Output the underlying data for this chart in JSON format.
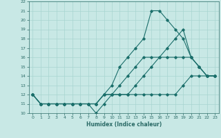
{
  "xlabel": "Humidex (Indice chaleur)",
  "ylabel": "",
  "background_color": "#c8e8e5",
  "grid_color": "#a8d5d0",
  "line_color": "#1a6e6a",
  "xlim": [
    -0.5,
    23.5
  ],
  "ylim": [
    10,
    22
  ],
  "xticks": [
    0,
    1,
    2,
    3,
    4,
    5,
    6,
    7,
    8,
    9,
    10,
    11,
    12,
    13,
    14,
    15,
    16,
    17,
    18,
    19,
    20,
    21,
    22,
    23
  ],
  "yticks": [
    10,
    11,
    12,
    13,
    14,
    15,
    16,
    17,
    18,
    19,
    20,
    21,
    22
  ],
  "curves": [
    [
      12,
      11,
      11,
      11,
      11,
      11,
      11,
      11,
      10,
      11,
      12,
      12,
      12,
      12,
      12,
      12,
      12,
      12,
      12,
      13,
      14,
      14,
      14,
      14
    ],
    [
      12,
      11,
      11,
      11,
      11,
      11,
      11,
      11,
      11,
      12,
      12,
      12,
      12,
      13,
      14,
      15,
      16,
      17,
      18,
      19,
      16,
      15,
      14,
      14
    ],
    [
      12,
      11,
      11,
      11,
      11,
      11,
      11,
      11,
      11,
      12,
      13,
      15,
      16,
      17,
      18,
      21,
      21,
      20,
      19,
      18,
      16,
      15,
      14,
      14
    ],
    [
      12,
      11,
      11,
      11,
      11,
      11,
      11,
      11,
      11,
      12,
      12,
      13,
      14,
      15,
      16,
      16,
      16,
      16,
      16,
      16,
      16,
      15,
      14,
      14
    ]
  ]
}
